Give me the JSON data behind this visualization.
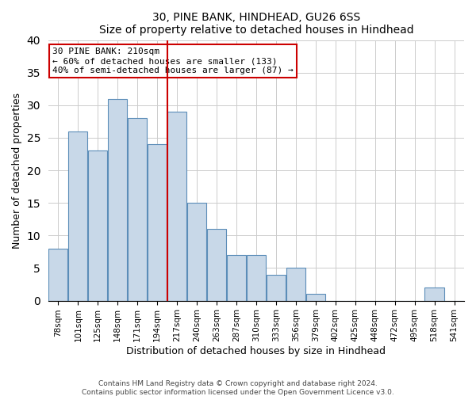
{
  "title": "30, PINE BANK, HINDHEAD, GU26 6SS",
  "subtitle": "Size of property relative to detached houses in Hindhead",
  "xlabel": "Distribution of detached houses by size in Hindhead",
  "ylabel": "Number of detached properties",
  "bar_labels": [
    "78sqm",
    "101sqm",
    "125sqm",
    "148sqm",
    "171sqm",
    "194sqm",
    "217sqm",
    "240sqm",
    "263sqm",
    "287sqm",
    "310sqm",
    "333sqm",
    "356sqm",
    "379sqm",
    "402sqm",
    "425sqm",
    "448sqm",
    "472sqm",
    "495sqm",
    "518sqm",
    "541sqm"
  ],
  "bar_heights": [
    8,
    26,
    23,
    31,
    28,
    24,
    29,
    15,
    11,
    7,
    7,
    4,
    5,
    1,
    0,
    0,
    0,
    0,
    0,
    2,
    0
  ],
  "bar_color": "#c8d8e8",
  "bar_edge_color": "#5b8db8",
  "vline_idx": 6,
  "vline_color": "#cc0000",
  "annotation_title": "30 PINE BANK: 210sqm",
  "annotation_line1": "← 60% of detached houses are smaller (133)",
  "annotation_line2": "40% of semi-detached houses are larger (87) →",
  "annotation_box_edge": "#cc0000",
  "ylim": [
    0,
    40
  ],
  "yticks": [
    0,
    5,
    10,
    15,
    20,
    25,
    30,
    35,
    40
  ],
  "footer1": "Contains HM Land Registry data © Crown copyright and database right 2024.",
  "footer2": "Contains public sector information licensed under the Open Government Licence v3.0.",
  "title_fontsize": 10,
  "label_fontsize": 9,
  "tick_fontsize": 7.5,
  "annot_fontsize": 8
}
